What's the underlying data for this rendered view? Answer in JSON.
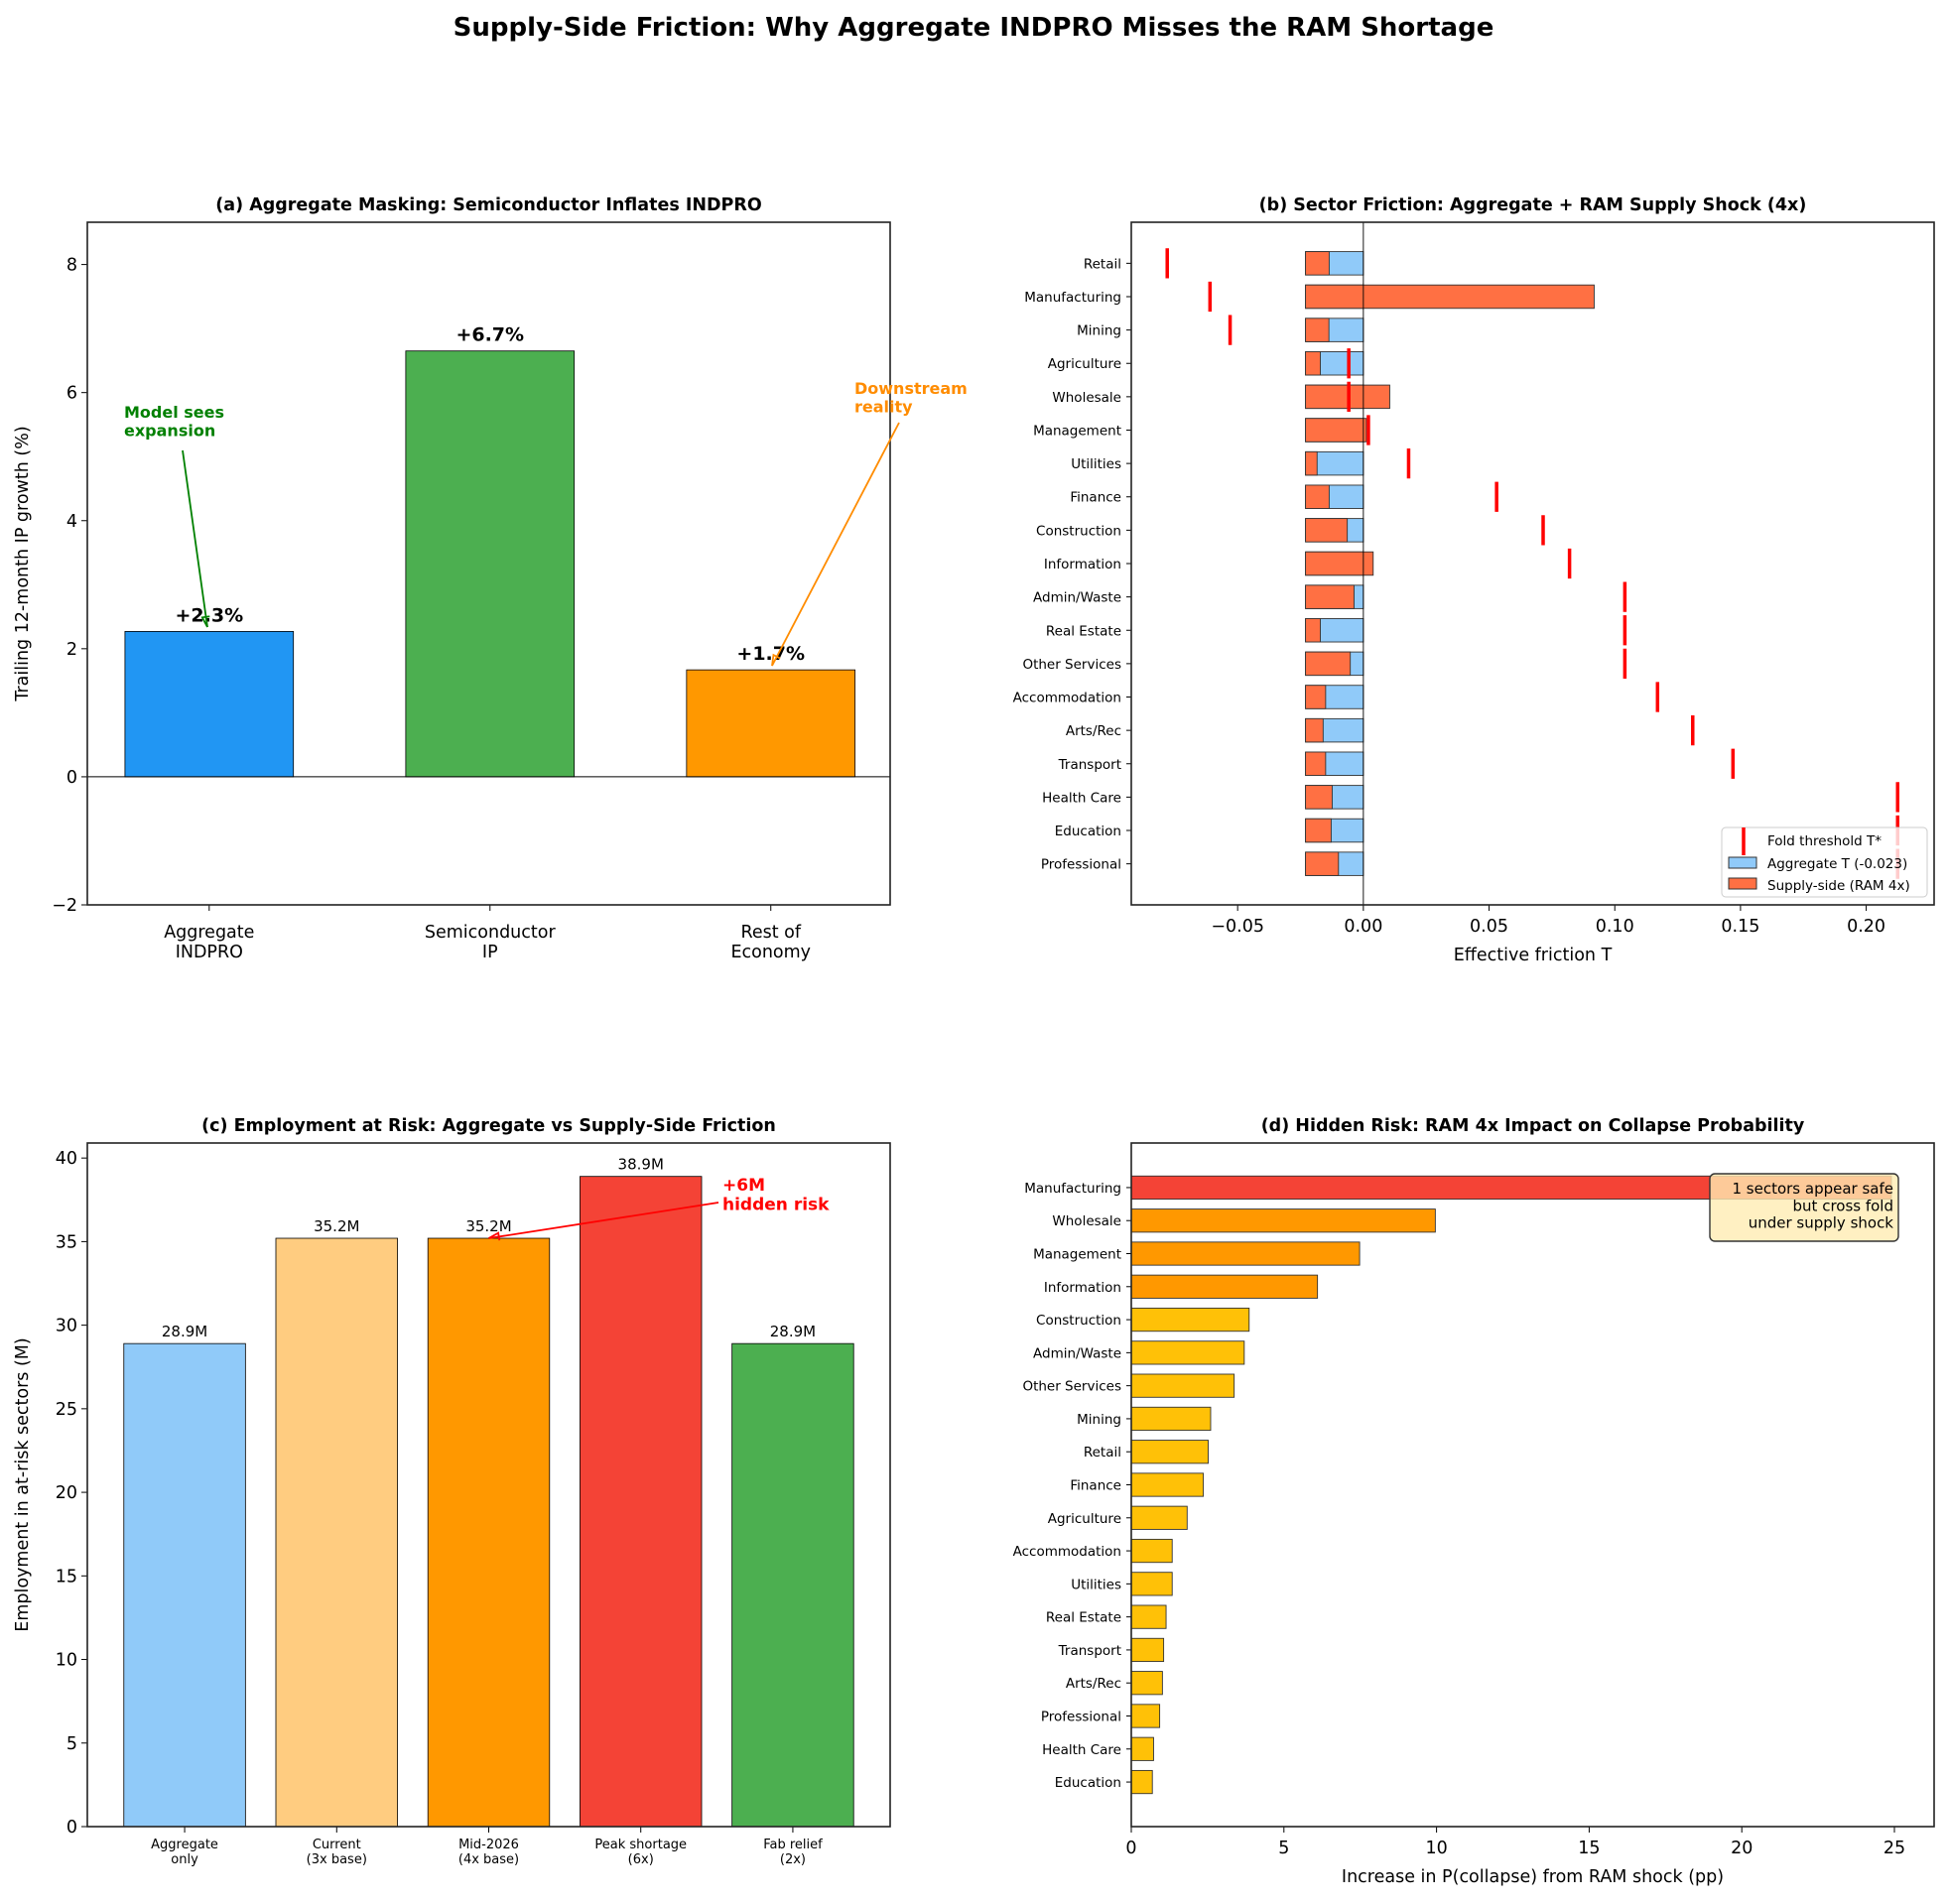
{
  "title": "Supply-Side Friction: Why Aggregate INDPRO Misses the RAM Shortage",
  "chart_data": [
    {
      "id": "a",
      "type": "bar",
      "title": "(a) Aggregate Masking: Semiconductor Inflates INDPRO",
      "ylabel": "Trailing 12-month IP growth (%)",
      "xlabel": "",
      "categories": [
        "Aggregate\nINDPRO",
        "Semiconductor\nIP",
        "Rest of\nEconomy"
      ],
      "values": [
        2.27,
        6.65,
        1.67
      ],
      "data_labels": [
        "+2.3%",
        "+6.7%",
        "+1.7%"
      ],
      "colors": [
        "#2196F3",
        "#4CAF50",
        "#FF9800"
      ],
      "ylim": [
        -2,
        8.66
      ],
      "yticks": [
        -2,
        0,
        2,
        4,
        6,
        8
      ],
      "annotations": [
        {
          "text": "Model sees\nexpansion",
          "color": "#008000",
          "points_to": "Aggregate INDPRO"
        },
        {
          "text": "Downstream\nreality",
          "color": "#FF8C00",
          "points_to": "Rest of Economy"
        }
      ]
    },
    {
      "id": "b",
      "type": "bar",
      "orientation": "horizontal",
      "title": "(b) Sector Friction: Aggregate + RAM Supply Shock (4x)",
      "xlabel": "Effective friction T",
      "categories": [
        "Retail",
        "Manufacturing",
        "Mining",
        "Agriculture",
        "Wholesale",
        "Management",
        "Utilities",
        "Finance",
        "Construction",
        "Information",
        "Admin/Waste",
        "Real Estate",
        "Other Services",
        "Accommodation",
        "Arts/Rec",
        "Transport",
        "Health Care",
        "Education",
        "Professional"
      ],
      "series": [
        {
          "name": "Aggregate T (-0.023)",
          "color": "#90CAF9",
          "values": [
            -0.023,
            -0.023,
            -0.023,
            -0.023,
            -0.023,
            -0.023,
            -0.023,
            -0.023,
            -0.023,
            -0.023,
            -0.023,
            -0.023,
            -0.023,
            -0.023,
            -0.023,
            -0.023,
            -0.023,
            -0.023,
            -0.023
          ]
        },
        {
          "name": "Supply-side (RAM 4x)",
          "color": "#FF7043",
          "values": [
            -0.0136,
            0.0918,
            -0.0137,
            -0.0171,
            0.0105,
            0.0012,
            -0.0184,
            -0.0136,
            -0.0064,
            0.0039,
            -0.0037,
            -0.0171,
            -0.0052,
            -0.015,
            -0.016,
            -0.015,
            -0.0124,
            -0.0128,
            -0.0099
          ]
        },
        {
          "name": "Fold threshold T*",
          "color": "#FF0000",
          "marker": "vertical-line",
          "values": [
            -0.078,
            -0.061,
            -0.053,
            -0.0058,
            -0.0058,
            0.002,
            0.018,
            0.053,
            0.0715,
            0.082,
            0.104,
            0.104,
            0.104,
            0.117,
            0.131,
            0.147,
            0.2125,
            0.2125,
            0.2125
          ]
        }
      ],
      "xlim": [
        -0.0923,
        0.227
      ],
      "xticks": [
        -0.05,
        0.0,
        0.05,
        0.1,
        0.15,
        0.2
      ],
      "xtick_labels": [
        "−0.05",
        "0.00",
        "0.05",
        "0.10",
        "0.15",
        "0.20"
      ],
      "legend": "lower-right"
    },
    {
      "id": "c",
      "type": "bar",
      "title": "(c) Employment at Risk: Aggregate vs Supply-Side Friction",
      "ylabel": "Employment in at-risk sectors (M)",
      "xlabel": "",
      "categories": [
        "Aggregate\nonly",
        "Current\n(3x base)",
        "Mid-2026\n(4x base)",
        "Peak shortage\n(6x)",
        "Fab relief\n(2x)"
      ],
      "values": [
        28.9,
        35.2,
        35.2,
        38.9,
        28.9
      ],
      "data_labels": [
        "28.9M",
        "35.2M",
        "35.2M",
        "38.9M",
        "28.9M"
      ],
      "colors": [
        "#90CAF9",
        "#FFCC80",
        "#FF9800",
        "#F44336",
        "#4CAF50"
      ],
      "ylim": [
        0,
        40.9
      ],
      "yticks": [
        0,
        5,
        10,
        15,
        20,
        25,
        30,
        35,
        40
      ],
      "annotations": [
        {
          "text": "+6M\nhidden risk",
          "color": "#FF0000",
          "points_to": "Mid-2026 (4x base)"
        }
      ]
    },
    {
      "id": "d",
      "type": "bar",
      "orientation": "horizontal",
      "title": "(d) Hidden Risk: RAM 4x Impact on Collapse Probability",
      "xlabel": "Increase in P(collapse) from RAM shock (pp)",
      "categories": [
        "Manufacturing",
        "Wholesale",
        "Management",
        "Information",
        "Construction",
        "Admin/Waste",
        "Other Services",
        "Mining",
        "Retail",
        "Finance",
        "Agriculture",
        "Accommodation",
        "Utilities",
        "Real Estate",
        "Transport",
        "Arts/Rec",
        "Professional",
        "Health Care",
        "Education"
      ],
      "values": [
        24.9,
        9.96,
        7.48,
        6.1,
        3.86,
        3.7,
        3.37,
        2.6,
        2.52,
        2.36,
        1.83,
        1.34,
        1.34,
        1.14,
        1.06,
        1.02,
        0.93,
        0.73,
        0.69
      ],
      "colors": [
        "#F44336",
        "#FF9800",
        "#FF9800",
        "#FF9800",
        "#FFC107",
        "#FFC107",
        "#FFC107",
        "#FFC107",
        "#FFC107",
        "#FFC107",
        "#FFC107",
        "#FFC107",
        "#FFC107",
        "#FFC107",
        "#FFC107",
        "#FFC107",
        "#FFC107",
        "#FFC107",
        "#FFC107"
      ],
      "xlim": [
        0,
        26.3
      ],
      "xticks": [
        0,
        5,
        10,
        15,
        20,
        25
      ],
      "annotations": [
        {
          "text": "1 sectors appear safe\nbut cross fold\nunder supply shock",
          "facecolor": "#FFECB3"
        }
      ]
    }
  ]
}
